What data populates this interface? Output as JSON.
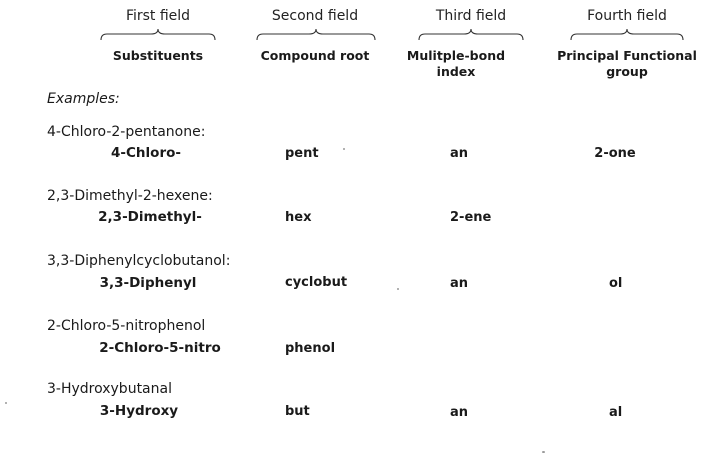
{
  "fields": [
    {
      "title": "First field",
      "header": "Substituents"
    },
    {
      "title": "Second field",
      "header": "Compound root"
    },
    {
      "title": "Third field",
      "header": "Mulitple-bond index"
    },
    {
      "title": "Fourth field",
      "header": "Principal Functional group"
    }
  ],
  "examples_label": "Examples:",
  "examples": [
    {
      "name": "4-Chloro-2-pentanone:",
      "substituents": "4-Chloro-",
      "root": "pent",
      "multiple_bond": "an",
      "functional_group": "2-one"
    },
    {
      "name": "2,3-Dimethyl-2-hexene:",
      "substituents": "2,3-Dimethyl-",
      "root": "hex",
      "multiple_bond": "2-ene",
      "functional_group": ""
    },
    {
      "name": "3,3-Diphenylcyclobutanol:",
      "substituents": "3,3-Diphenyl",
      "root": "cyclobut",
      "multiple_bond": "an",
      "functional_group": "ol"
    },
    {
      "name": "2-Chloro-5-nitrophenol",
      "substituents": "2-Chloro-5-nitro",
      "root": "phenol",
      "multiple_bond": "",
      "functional_group": ""
    },
    {
      "name": "3-Hydroxybutanal",
      "substituents": "3-Hydroxy",
      "root": "but",
      "multiple_bond": "an",
      "functional_group": "al"
    }
  ]
}
